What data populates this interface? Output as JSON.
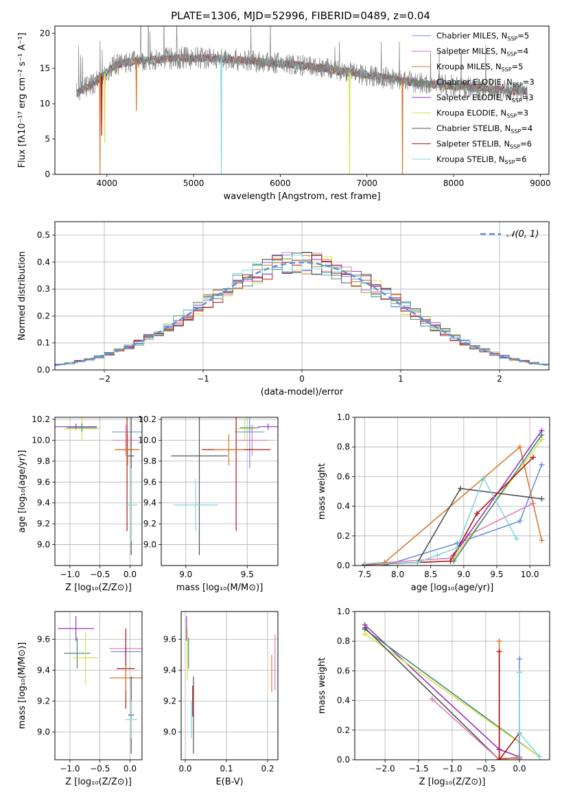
{
  "figure": {
    "title": "PLATE=1306, MJD=52996, FIBERID=0489, z=0.04"
  },
  "colors": {
    "grid": "#b0b0b0",
    "Chabrier MILES": "#6a8fdc",
    "Salpeter MILES": "#e27ab6",
    "Kroupa MILES": "#d8772b",
    "Chabrier ELODIE": "#3d8c73",
    "Salpeter ELODIE": "#9630b7",
    "Kroupa ELODIE": "#d6e04a",
    "Chabrier STELIB": "#505050",
    "Salpeter STELIB": "#b01515",
    "Kroupa STELIB": "#7fd6dc",
    "model": "#808080",
    "gauss": "#5a8fd8"
  },
  "chart_data": [
    {
      "id": "spectrum",
      "type": "line",
      "xlabel": "wavelength [Angstrom, rest frame]",
      "ylabel": "Flux [fλ10⁻¹⁷ erg cm⁻² s⁻¹ A⁻¹]",
      "xlim": [
        3400,
        9100
      ],
      "ylim": [
        0,
        21
      ],
      "xticks": [
        4000,
        5000,
        6000,
        7000,
        8000,
        9000
      ],
      "yticks": [
        0,
        5,
        10,
        15,
        20
      ],
      "legend_position": "top-right",
      "grid": false,
      "legend": [
        {
          "key": "Chabrier MILES",
          "label": "Chabrier MILES, N",
          "sub": "SSP",
          "n": "=5"
        },
        {
          "key": "Salpeter MILES",
          "label": "Salpeter MILES, N",
          "sub": "SSP",
          "n": "=4"
        },
        {
          "key": "Kroupa MILES",
          "label": "Kroupa MILES, N",
          "sub": "SSP",
          "n": "=5"
        },
        {
          "key": "Chabrier ELODIE",
          "label": "Chabrier ELODIE, N",
          "sub": "SSP",
          "n": "=3"
        },
        {
          "key": "Salpeter ELODIE",
          "label": "Salpeter ELODIE, N",
          "sub": "SSP",
          "n": "=3"
        },
        {
          "key": "Kroupa ELODIE",
          "label": "Kroupa ELODIE, N",
          "sub": "SSP",
          "n": "=3"
        },
        {
          "key": "Chabrier STELIB",
          "label": "Chabrier STELIB, N",
          "sub": "SSP",
          "n": "=4"
        },
        {
          "key": "Salpeter STELIB",
          "label": "Salpeter STELIB, N",
          "sub": "SSP",
          "n": "=6"
        },
        {
          "key": "Kroupa STELIB",
          "label": "Kroupa STELIB, N",
          "sub": "SSP",
          "n": "=6"
        }
      ],
      "continuum": [
        [
          3650,
          11.5
        ],
        [
          3800,
          12.5
        ],
        [
          3950,
          14
        ],
        [
          4100,
          15.5
        ],
        [
          4300,
          16
        ],
        [
          4500,
          16.2
        ],
        [
          4700,
          16.4
        ],
        [
          4900,
          16.5
        ],
        [
          5100,
          16.5
        ],
        [
          5300,
          16.4
        ],
        [
          5500,
          16.2
        ],
        [
          5700,
          16
        ],
        [
          5900,
          15.8
        ],
        [
          6100,
          15.6
        ],
        [
          6300,
          15.3
        ],
        [
          6500,
          15.0
        ],
        [
          6700,
          14.6
        ],
        [
          6900,
          14.3
        ],
        [
          7100,
          13.9
        ],
        [
          7300,
          13.5
        ],
        [
          7500,
          13.1
        ],
        [
          7700,
          12.8
        ],
        [
          7900,
          12.6
        ],
        [
          8100,
          12.4
        ],
        [
          8300,
          12.2
        ],
        [
          8500,
          12.0
        ],
        [
          8700,
          11.8
        ],
        [
          8900,
          11.8
        ]
      ],
      "model_dips": [
        {
          "key": "Kroupa MILES",
          "x": 3920,
          "y": 0
        },
        {
          "key": "Kroupa MILES",
          "x": 7410,
          "y": 0
        },
        {
          "key": "Kroupa STELIB",
          "x": 5320,
          "y": 0
        },
        {
          "key": "Kroupa ELODIE",
          "x": 6800,
          "y": 0
        },
        {
          "key": "Kroupa ELODIE",
          "x": 3975,
          "y": 4.5
        },
        {
          "key": "Salpeter STELIB",
          "x": 3940,
          "y": 5.5
        },
        {
          "key": "Kroupa MILES",
          "x": 4340,
          "y": 9
        }
      ]
    },
    {
      "id": "residuals",
      "type": "line",
      "xlabel": "(data-model)/error",
      "ylabel": "Normed distribution",
      "xlim": [
        -2.5,
        2.5
      ],
      "ylim": [
        0,
        0.55
      ],
      "xticks": [
        -2,
        -1,
        0,
        1,
        2
      ],
      "yticks": [
        0.0,
        0.1,
        0.2,
        0.3,
        0.4,
        0.5
      ],
      "grid": true,
      "legend": "𝒩(0, 1)",
      "legend_position": "top-right"
    },
    {
      "id": "age-vs-Z",
      "type": "scatter",
      "xlabel": "Z [log₁₀(Z/Z⊙)]",
      "ylabel": "age  [log₁₀(age/yr)]",
      "xlim": [
        -1.25,
        0.2
      ],
      "ylim": [
        8.8,
        10.22
      ],
      "xticks": [
        -1.0,
        -0.5,
        0.0
      ],
      "yticks": [
        9.0,
        9.2,
        9.4,
        9.6,
        9.8,
        10.0,
        10.2
      ],
      "grid": true,
      "points": [
        {
          "key": "Salpeter ELODIE",
          "x": -0.9,
          "xerr": 0.35,
          "y": 10.13,
          "yerr": 0.03
        },
        {
          "key": "Kroupa ELODIE",
          "x": -0.8,
          "xerr": 0.3,
          "y": 10.11,
          "yerr": 0.12
        },
        {
          "key": "Chabrier ELODIE",
          "x": -0.8,
          "xerr": 0.25,
          "y": 10.12,
          "yerr": 0.04
        },
        {
          "key": "Chabrier MILES",
          "x": -0.05,
          "xerr": 0.25,
          "y": 10.08,
          "yerr": 0.05
        },
        {
          "key": "Salpeter MILES",
          "x": -0.07,
          "xerr": 0.22,
          "y": 10.0,
          "yerr": 0.15
        },
        {
          "key": "Salpeter STELIB",
          "x": -0.05,
          "xerr": 0.2,
          "y": 9.91,
          "yerr": 0.78
        },
        {
          "key": "Kroupa MILES",
          "x": -0.04,
          "xerr": 0.2,
          "y": 9.91,
          "yerr": 0.15
        },
        {
          "key": "Chabrier STELIB",
          "x": 0.02,
          "xerr": 0.05,
          "y": 9.85,
          "yerr": 0.95
        },
        {
          "key": "Kroupa STELIB",
          "x": 0.02,
          "xerr": 0.1,
          "y": 9.38,
          "yerr": 0.35
        }
      ]
    },
    {
      "id": "age-vs-mass",
      "type": "scatter",
      "xlabel": "mass [log₁₀(M/M⊙)]",
      "ylabel": "",
      "xlim": [
        8.8,
        9.75
      ],
      "ylim": [
        8.8,
        10.22
      ],
      "xticks": [
        9.0,
        9.5
      ],
      "yticks": [
        9.0,
        9.2,
        9.4,
        9.6,
        9.8,
        10.0,
        10.2
      ],
      "grid": true,
      "points": [
        {
          "key": "Salpeter ELODIE",
          "x": 9.67,
          "xerr": 0.08,
          "y": 10.13,
          "yerr": 0.03
        },
        {
          "key": "Kroupa ELODIE",
          "x": 9.48,
          "xerr": 0.08,
          "y": 10.11,
          "yerr": 0.1
        },
        {
          "key": "Chabrier ELODIE",
          "x": 9.52,
          "xerr": 0.08,
          "y": 10.12,
          "yerr": 0.04
        },
        {
          "key": "Chabrier MILES",
          "x": 9.52,
          "xerr": 0.12,
          "y": 10.08,
          "yerr": 0.35
        },
        {
          "key": "Salpeter MILES",
          "x": 9.54,
          "xerr": 0.12,
          "y": 10.0,
          "yerr": 0.15
        },
        {
          "key": "Salpeter STELIB",
          "x": 9.41,
          "xerr": 0.28,
          "y": 9.91,
          "yerr": 0.78
        },
        {
          "key": "Kroupa MILES",
          "x": 9.35,
          "xerr": 0.12,
          "y": 9.91,
          "yerr": 0.15
        },
        {
          "key": "Chabrier STELIB",
          "x": 9.11,
          "xerr": 0.23,
          "y": 9.85,
          "yerr": 0.95
        },
        {
          "key": "Kroupa STELIB",
          "x": 9.08,
          "xerr": 0.18,
          "y": 9.38,
          "yerr": 0.25
        }
      ]
    },
    {
      "id": "weight-vs-age",
      "type": "line",
      "xlabel": "age  [log₁₀(age/yr)]",
      "ylabel": "mass weight",
      "xlim": [
        7.35,
        10.3
      ],
      "ylim": [
        0,
        1.0
      ],
      "xticks": [
        7.5,
        8.0,
        8.5,
        9.0,
        9.5,
        10.0
      ],
      "yticks": [
        0.0,
        0.2,
        0.4,
        0.6,
        0.8,
        1.0
      ],
      "grid": true,
      "series": [
        {
          "key": "Chabrier MILES",
          "points": [
            [
              7.8,
              0.0
            ],
            [
              8.9,
              0.15
            ],
            [
              9.85,
              0.3
            ],
            [
              10.18,
              0.68
            ]
          ]
        },
        {
          "key": "Salpeter MILES",
          "points": [
            [
              7.5,
              0.01
            ],
            [
              8.8,
              0.05
            ],
            [
              9.05,
              0.2
            ],
            [
              10.05,
              0.42
            ]
          ]
        },
        {
          "key": "Kroupa MILES",
          "points": [
            [
              7.5,
              0.01
            ],
            [
              7.8,
              0.02
            ],
            [
              9.85,
              0.8
            ],
            [
              10.18,
              0.17
            ]
          ]
        },
        {
          "key": "Salpeter ELODIE",
          "points": [
            [
              8.85,
              0.07
            ],
            [
              10.18,
              0.91
            ]
          ]
        },
        {
          "key": "Kroupa ELODIE",
          "points": [
            [
              8.85,
              0.05
            ],
            [
              10.18,
              0.85
            ]
          ]
        },
        {
          "key": "Chabrier ELODIE",
          "points": [
            [
              8.85,
              0.03
            ],
            [
              10.18,
              0.88
            ]
          ]
        },
        {
          "key": "Chabrier STELIB",
          "points": [
            [
              7.5,
              0.01
            ],
            [
              8.3,
              0.02
            ],
            [
              8.95,
              0.52
            ],
            [
              10.18,
              0.45
            ]
          ]
        },
        {
          "key": "Salpeter STELIB",
          "points": [
            [
              7.5,
              0.005
            ],
            [
              8.8,
              0.03
            ],
            [
              9.2,
              0.35
            ],
            [
              10.05,
              0.73
            ]
          ]
        },
        {
          "key": "Kroupa STELIB",
          "points": [
            [
              7.5,
              0.01
            ],
            [
              8.3,
              0.02
            ],
            [
              8.6,
              0.07
            ],
            [
              8.9,
              0.12
            ],
            [
              9.3,
              0.59
            ],
            [
              9.8,
              0.18
            ]
          ]
        }
      ]
    },
    {
      "id": "mass-vs-Z",
      "type": "scatter",
      "xlabel": "Z [log₁₀(Z/Z⊙)]",
      "ylabel": "mass [log₁₀(M/M⊙)]",
      "xlim": [
        -1.25,
        0.2
      ],
      "ylim": [
        8.82,
        9.78
      ],
      "xticks": [
        -1.0,
        -0.5,
        0.0
      ],
      "yticks": [
        9.0,
        9.2,
        9.4,
        9.6
      ],
      "grid": true,
      "points": [
        {
          "key": "Salpeter ELODIE",
          "x": -0.9,
          "xerr": 0.3,
          "y": 9.67,
          "yerr": 0.08
        },
        {
          "key": "Chabrier ELODIE",
          "x": -0.88,
          "xerr": 0.22,
          "y": 9.51,
          "yerr": 0.1
        },
        {
          "key": "Kroupa ELODIE",
          "x": -0.74,
          "xerr": 0.2,
          "y": 9.48,
          "yerr": 0.17
        },
        {
          "key": "Salpeter MILES",
          "x": -0.07,
          "xerr": 0.27,
          "y": 9.54,
          "yerr": 0.06
        },
        {
          "key": "Chabrier MILES",
          "x": -0.07,
          "xerr": 0.25,
          "y": 9.52,
          "yerr": 0.12
        },
        {
          "key": "Salpeter STELIB",
          "x": -0.07,
          "xerr": 0.15,
          "y": 9.41,
          "yerr": 0.26
        },
        {
          "key": "Kroupa MILES",
          "x": -0.07,
          "xerr": 0.27,
          "y": 9.35,
          "yerr": 0.08
        },
        {
          "key": "Chabrier STELIB",
          "x": 0.02,
          "xerr": 0.05,
          "y": 9.11,
          "yerr": 0.25
        },
        {
          "key": "Kroupa STELIB",
          "x": 0.02,
          "xerr": 0.1,
          "y": 9.08,
          "yerr": 0.12
        }
      ]
    },
    {
      "id": "mass-vs-ebv",
      "type": "scatter",
      "xlabel": "E(B-V)",
      "ylabel": "",
      "xlim": [
        -0.01,
        0.225
      ],
      "ylim": [
        8.82,
        9.78
      ],
      "xticks": [
        0.0,
        0.1,
        0.2
      ],
      "yticks": [
        9.0,
        9.2,
        9.4,
        9.6
      ],
      "grid": true,
      "points": [
        {
          "key": "Salpeter ELODIE",
          "x": 0.003,
          "xerr": 0.0,
          "y": 9.67,
          "yerr": 0.08
        },
        {
          "key": "Kroupa ELODIE",
          "x": 0.005,
          "xerr": 0.0,
          "y": 9.5,
          "yerr": 0.17
        },
        {
          "key": "Chabrier ELODIE",
          "x": 0.008,
          "xerr": 0.0,
          "y": 9.51,
          "yerr": 0.1
        },
        {
          "key": "Kroupa STELIB",
          "x": 0.015,
          "xerr": 0.0,
          "y": 9.08,
          "yerr": 0.12
        },
        {
          "key": "Chabrier STELIB",
          "x": 0.02,
          "xerr": 0.0,
          "y": 9.11,
          "yerr": 0.25
        },
        {
          "key": "Salpeter STELIB",
          "x": 0.018,
          "xerr": 0.0,
          "y": 9.2,
          "yerr": 0.1
        },
        {
          "key": "Kroupa MILES",
          "x": 0.21,
          "xerr": 0.0,
          "y": 9.38,
          "yerr": 0.12
        },
        {
          "key": "Salpeter MILES",
          "x": 0.218,
          "xerr": 0.0,
          "y": 9.45,
          "yerr": 0.18
        }
      ]
    },
    {
      "id": "weight-vs-Z",
      "type": "line",
      "xlabel": "Z [log₁₀(Z/Z⊙)]",
      "ylabel": "mass weight",
      "xlim": [
        -2.45,
        0.45
      ],
      "ylim": [
        0,
        1.0
      ],
      "xticks": [
        -2.0,
        -1.5,
        -1.0,
        -0.5,
        0.0
      ],
      "yticks": [
        0.0,
        0.2,
        0.4,
        0.6,
        0.8,
        1.0
      ],
      "grid": true,
      "series": [
        {
          "key": "Salpeter ELODIE",
          "points": [
            [
              -2.3,
              0.91
            ],
            [
              -0.3,
              0.07
            ],
            [
              0.0,
              0.02
            ]
          ]
        },
        {
          "key": "Chabrier ELODIE",
          "points": [
            [
              -2.3,
              0.88
            ],
            [
              0.3,
              0.02
            ]
          ]
        },
        {
          "key": "Kroupa ELODIE",
          "points": [
            [
              -2.3,
              0.85
            ],
            [
              0.3,
              0.02
            ]
          ]
        },
        {
          "key": "Chabrier STELIB",
          "points": [
            [
              -2.3,
              0.89
            ],
            [
              -0.3,
              0.0
            ],
            [
              0.0,
              0.02
            ]
          ]
        },
        {
          "key": "Salpeter MILES",
          "points": [
            [
              -1.3,
              0.41
            ],
            [
              -0.3,
              0.0
            ],
            [
              0.0,
              0.02
            ]
          ]
        },
        {
          "key": "Kroupa MILES",
          "points": [
            [
              -0.3,
              0.8
            ],
            [
              -0.3,
              0.01
            ],
            [
              0.0,
              0.01
            ]
          ]
        },
        {
          "key": "Salpeter STELIB",
          "points": [
            [
              -0.3,
              0.73
            ],
            [
              -0.3,
              0.0
            ],
            [
              0.0,
              0.18
            ]
          ]
        },
        {
          "key": "Chabrier MILES",
          "points": [
            [
              0.0,
              0.0
            ],
            [
              0.0,
              0.68
            ]
          ]
        },
        {
          "key": "Kroupa STELIB",
          "points": [
            [
              0.0,
              0.59
            ],
            [
              0.0,
              0.18
            ],
            [
              0.3,
              0.02
            ]
          ]
        }
      ]
    }
  ]
}
